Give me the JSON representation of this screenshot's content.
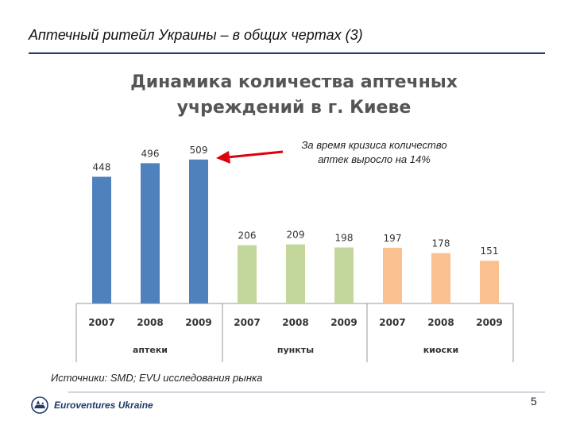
{
  "header": {
    "title": "Аптечный ритейл Украины – в общих чертах (3)"
  },
  "chart_data": {
    "type": "bar",
    "title_lines": [
      "Динамика количества аптечных",
      "учреждений в г. Киеве"
    ],
    "groups": [
      {
        "name": "аптеки",
        "color": "#4f81bd",
        "categories": [
          "2007",
          "2008",
          "2009"
        ],
        "values": [
          448,
          496,
          509
        ]
      },
      {
        "name": "пункты",
        "color": "#c3d69b",
        "categories": [
          "2007",
          "2008",
          "2009"
        ],
        "values": [
          206,
          209,
          198
        ]
      },
      {
        "name": "киоски",
        "color": "#fac08f",
        "categories": [
          "2007",
          "2008",
          "2009"
        ],
        "values": [
          197,
          178,
          151
        ]
      }
    ],
    "ylim": [
      0,
      560
    ],
    "grid": false,
    "annotation": {
      "line1": "За время кризиса количество",
      "line2": "аптек выросло на 14%",
      "arrow_color": "#e0000a",
      "target": "аптеки 2009"
    }
  },
  "footer": {
    "source": "Источники: SMD; EVU исследования рынка",
    "logo_text": "Euroventures Ukraine",
    "page_number": "5"
  }
}
